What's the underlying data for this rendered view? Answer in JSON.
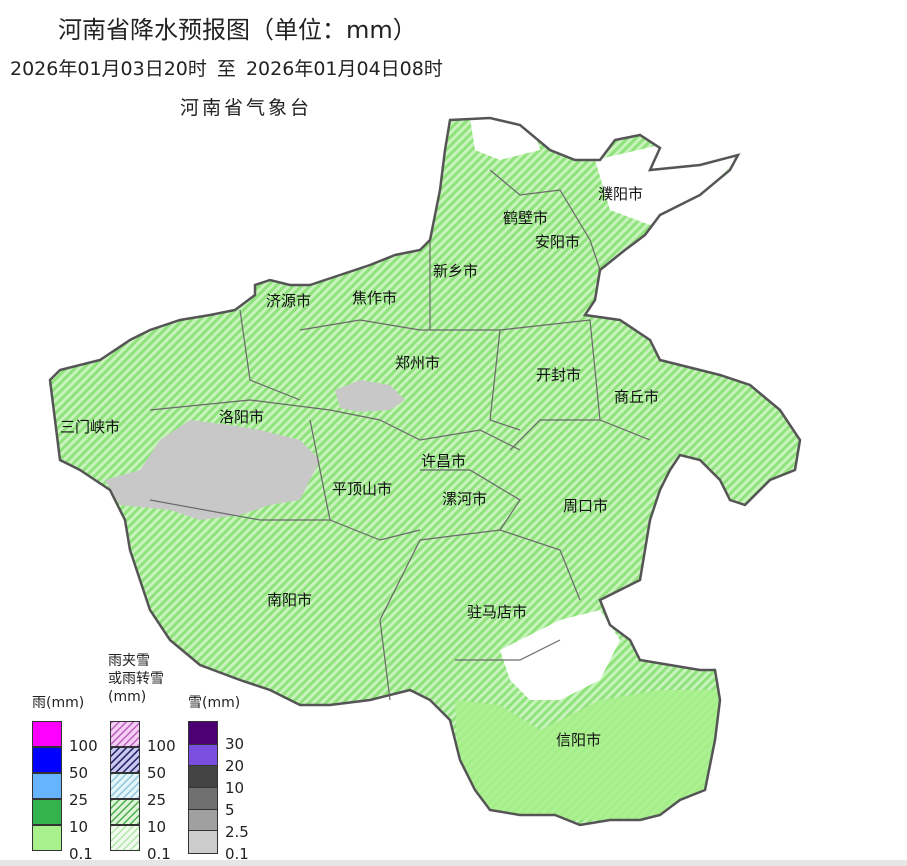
{
  "header": {
    "title": "河南省降水预报图（单位：mm）",
    "period": "2026年01月03日20时  至  2026年01月04日08时",
    "agency": "河南省气象台"
  },
  "map": {
    "cities": [
      "濮阳市",
      "鹤壁市",
      "安阳市",
      "新乡市",
      "济源市",
      "焦作市",
      "郑州市",
      "开封市",
      "商丘市",
      "三门峡市",
      "洛阳市",
      "许昌市",
      "平顶山市",
      "漯河市",
      "周口市",
      "南阳市",
      "驻马店市",
      "信阳市"
    ],
    "colors": {
      "rain_light_hatch": "#9be88a",
      "snow_light": "#c8c8c8",
      "rain_light": "#a8f08c",
      "border": "#555555"
    }
  },
  "legend": {
    "rain": {
      "title": "雨(mm)",
      "labels": [
        "100",
        "50",
        "25",
        "10",
        "0.1"
      ],
      "colors": [
        "#ff00ff",
        "#0000ff",
        "#66b3ff",
        "#33b34c",
        "#a8f08c"
      ]
    },
    "mixed": {
      "title_line1": "雨夹雪",
      "title_line2": "或雨转雪",
      "title_line3": "(mm)",
      "labels": [
        "100",
        "50",
        "25",
        "10",
        "0.1"
      ],
      "colors": [
        "#e08ae0",
        "#3a3a9a",
        "#9cd0e0",
        "#5cb85c",
        "#b8ecb0"
      ]
    },
    "snow": {
      "title": "雪(mm)",
      "labels": [
        "30",
        "20",
        "10",
        "5",
        "2.5",
        "0.1"
      ],
      "colors": [
        "#4b0073",
        "#7a4fe0",
        "#444444",
        "#707070",
        "#a0a0a0",
        "#cccccc"
      ]
    }
  }
}
